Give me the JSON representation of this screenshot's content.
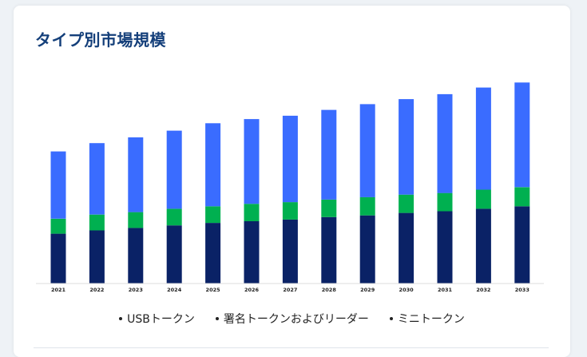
{
  "title": "タイプ別市場規模",
  "colors": {
    "usb": "#0a2266",
    "signing": "#00b050",
    "mini": "#3a6cff",
    "title": "#143f7a",
    "axis": "#dddddd"
  },
  "chart_data": {
    "type": "bar",
    "stacked": true,
    "title": "タイプ別市場規模",
    "categories": [
      "2021",
      "2022",
      "2023",
      "2024",
      "2025",
      "2026",
      "2027",
      "2028",
      "2029",
      "2030",
      "2031",
      "2032",
      "2033"
    ],
    "series": [
      {
        "name": "USBトークン",
        "color": "#0a2266",
        "values": [
          60,
          64,
          67,
          70,
          73,
          75,
          77,
          80,
          82,
          85,
          87,
          90,
          93
        ]
      },
      {
        "name": "署名トークンおよびリーダー",
        "color": "#00b050",
        "values": [
          18,
          19,
          19,
          20,
          20,
          21,
          21,
          21,
          22,
          22,
          22,
          23,
          23
        ]
      },
      {
        "name": "ミニトークン",
        "color": "#3a6cff",
        "values": [
          81,
          86,
          90,
          94,
          100,
          102,
          104,
          108,
          112,
          115,
          119,
          123,
          126
        ]
      }
    ],
    "ylim": [
      0,
      250
    ],
    "grid": false,
    "legend": "bottom"
  }
}
